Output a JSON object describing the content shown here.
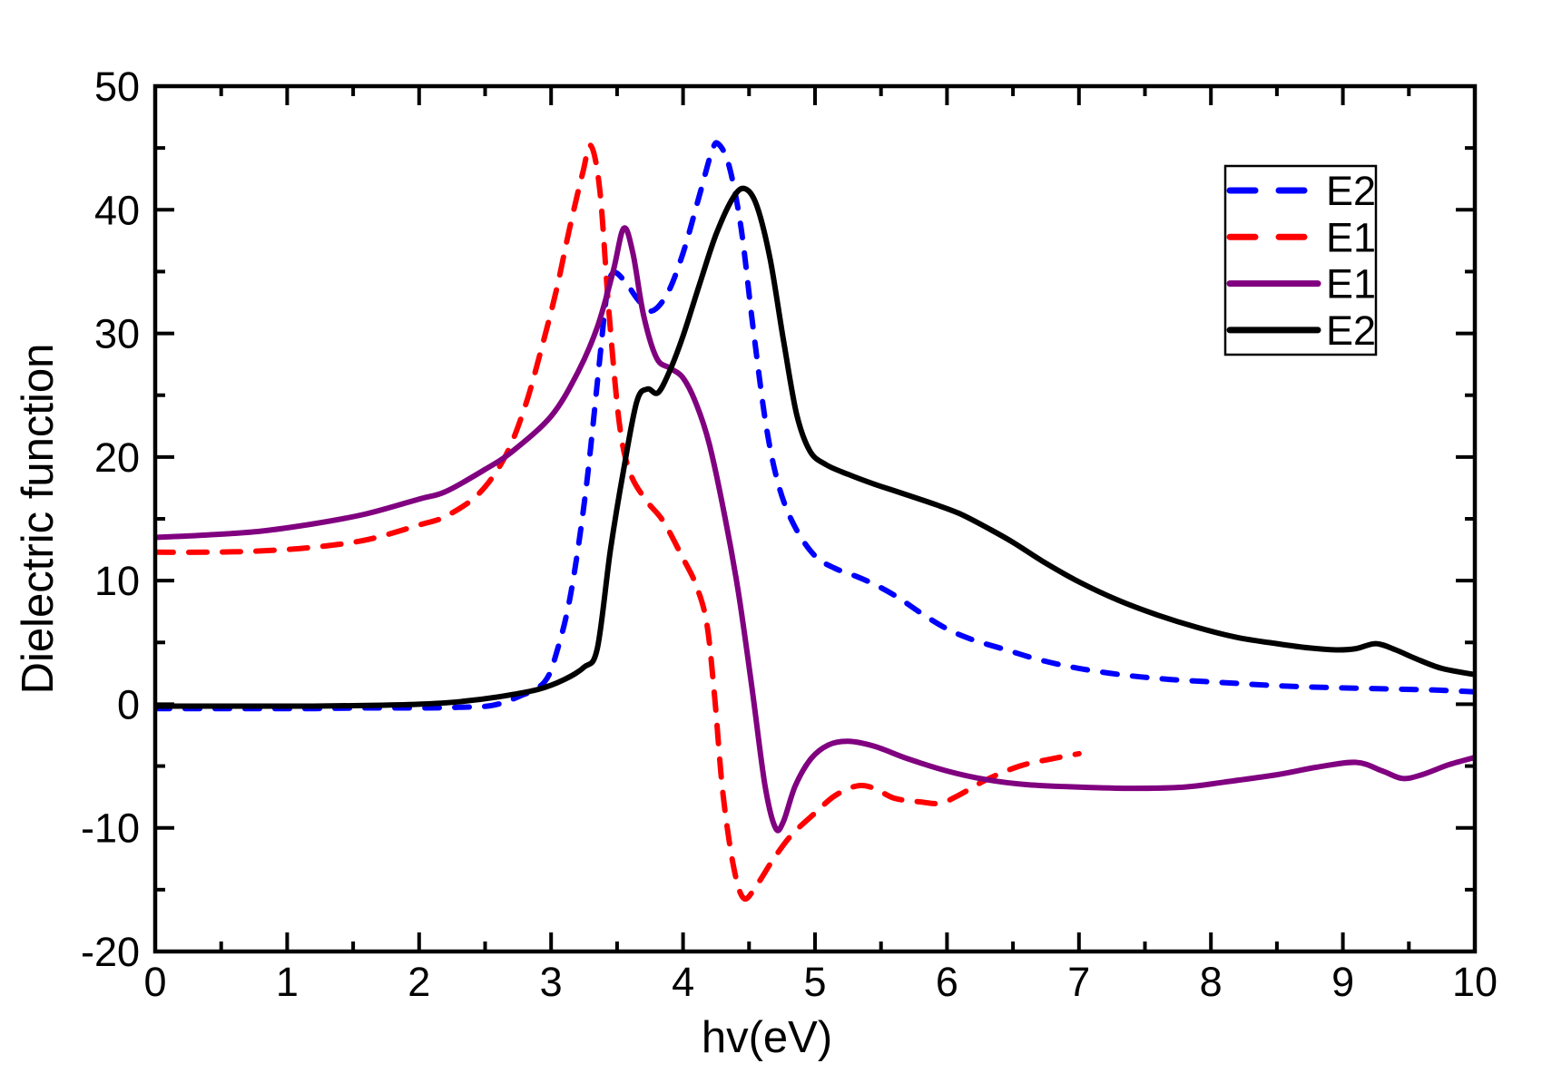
{
  "chart_data": {
    "type": "line",
    "title": "",
    "xlabel": "hv(eV)",
    "ylabel": "Dielectric function",
    "xlim": [
      0,
      10
    ],
    "ylim": [
      -20,
      50
    ],
    "x_major_ticks": [
      0,
      1,
      2,
      3,
      4,
      5,
      6,
      7,
      8,
      9,
      10
    ],
    "x_minor_step": 0.5,
    "y_major_ticks": [
      -20,
      -10,
      0,
      10,
      20,
      30,
      40,
      50
    ],
    "y_minor_step": 5,
    "grid": false,
    "background_color": "#ffffff",
    "axis_color": "#000000",
    "legend": {
      "position": "top-right",
      "entries": [
        {
          "label": "E2",
          "color": "#0000ff",
          "dashed": true
        },
        {
          "label": "E1",
          "color": "#ff0000",
          "dashed": true
        },
        {
          "label": "E1",
          "color": "#800080",
          "dashed": false
        },
        {
          "label": "E2",
          "color": "#000000",
          "dashed": false
        }
      ]
    },
    "series": [
      {
        "name": "E2",
        "color": "#0000ff",
        "dashed": true,
        "points": [
          [
            0,
            -0.35
          ],
          [
            0.4,
            -0.35
          ],
          [
            0.8,
            -0.35
          ],
          [
            1.2,
            -0.35
          ],
          [
            1.6,
            -0.3
          ],
          [
            2.0,
            -0.3
          ],
          [
            2.3,
            -0.25
          ],
          [
            2.55,
            -0.1
          ],
          [
            2.75,
            0.6
          ],
          [
            2.95,
            1.8
          ],
          [
            3.05,
            4.5
          ],
          [
            3.15,
            9
          ],
          [
            3.26,
            17
          ],
          [
            3.36,
            27
          ],
          [
            3.42,
            33
          ],
          [
            3.47,
            34.9
          ],
          [
            3.56,
            34.2
          ],
          [
            3.66,
            32.7
          ],
          [
            3.76,
            31.8
          ],
          [
            3.88,
            33.2
          ],
          [
            4.0,
            36.5
          ],
          [
            4.12,
            41
          ],
          [
            4.22,
            44.8
          ],
          [
            4.27,
            45.3
          ],
          [
            4.35,
            43.5
          ],
          [
            4.44,
            38.5
          ],
          [
            4.53,
            30.5
          ],
          [
            4.63,
            22.5
          ],
          [
            4.73,
            17.5
          ],
          [
            4.85,
            14.3
          ],
          [
            5.0,
            12.0
          ],
          [
            5.15,
            11.0
          ],
          [
            5.3,
            10.4
          ],
          [
            5.45,
            9.7
          ],
          [
            5.62,
            8.7
          ],
          [
            5.8,
            7.4
          ],
          [
            6.0,
            6.1
          ],
          [
            6.2,
            5.2
          ],
          [
            6.45,
            4.4
          ],
          [
            6.7,
            3.6
          ],
          [
            7.0,
            2.9
          ],
          [
            7.35,
            2.35
          ],
          [
            7.7,
            2.0
          ],
          [
            8.1,
            1.75
          ],
          [
            8.5,
            1.5
          ],
          [
            8.9,
            1.35
          ],
          [
            9.3,
            1.25
          ],
          [
            9.7,
            1.15
          ],
          [
            10,
            1.0
          ]
        ]
      },
      {
        "name": "E1",
        "color": "#ff0000",
        "dashed": true,
        "points": [
          [
            0,
            12.3
          ],
          [
            0.4,
            12.3
          ],
          [
            0.8,
            12.4
          ],
          [
            1.2,
            12.7
          ],
          [
            1.6,
            13.3
          ],
          [
            2.0,
            14.5
          ],
          [
            2.2,
            15.2
          ],
          [
            2.45,
            17
          ],
          [
            2.65,
            20
          ],
          [
            2.8,
            24
          ],
          [
            2.92,
            28.5
          ],
          [
            3.04,
            33.5
          ],
          [
            3.14,
            38.5
          ],
          [
            3.24,
            43
          ],
          [
            3.3,
            45.2
          ],
          [
            3.37,
            41.5
          ],
          [
            3.44,
            31.5
          ],
          [
            3.52,
            22.5
          ],
          [
            3.6,
            18.7
          ],
          [
            3.72,
            16.5
          ],
          [
            3.85,
            14.8
          ],
          [
            4.0,
            11.8
          ],
          [
            4.1,
            9.6
          ],
          [
            4.18,
            6.5
          ],
          [
            4.24,
            0.5
          ],
          [
            4.3,
            -7
          ],
          [
            4.38,
            -13
          ],
          [
            4.46,
            -15.7
          ],
          [
            4.56,
            -14.6
          ],
          [
            4.68,
            -12.6
          ],
          [
            4.82,
            -10.6
          ],
          [
            5.0,
            -8.8
          ],
          [
            5.15,
            -7.4
          ],
          [
            5.32,
            -6.6
          ],
          [
            5.45,
            -6.8
          ],
          [
            5.6,
            -7.6
          ],
          [
            5.8,
            -7.9
          ],
          [
            5.95,
            -8.0
          ],
          [
            6.1,
            -7.3
          ],
          [
            6.3,
            -6.1
          ],
          [
            6.55,
            -5.0
          ],
          [
            6.8,
            -4.4
          ],
          [
            7.0,
            -4.0
          ]
        ]
      },
      {
        "name": "E1",
        "color": "#800080",
        "dashed": false,
        "points": [
          [
            0,
            13.5
          ],
          [
            0.4,
            13.7
          ],
          [
            0.8,
            14.0
          ],
          [
            1.2,
            14.6
          ],
          [
            1.6,
            15.4
          ],
          [
            2.0,
            16.6
          ],
          [
            2.2,
            17.2
          ],
          [
            2.5,
            19
          ],
          [
            2.7,
            20.4
          ],
          [
            3.0,
            23.3
          ],
          [
            3.2,
            26.8
          ],
          [
            3.35,
            30.5
          ],
          [
            3.47,
            35
          ],
          [
            3.55,
            38.5
          ],
          [
            3.62,
            36.5
          ],
          [
            3.7,
            31.5
          ],
          [
            3.8,
            28.0
          ],
          [
            3.9,
            27.2
          ],
          [
            4.0,
            26.4
          ],
          [
            4.1,
            24.3
          ],
          [
            4.2,
            21.0
          ],
          [
            4.32,
            15.0
          ],
          [
            4.42,
            9.0
          ],
          [
            4.52,
            1.5
          ],
          [
            4.62,
            -6.5
          ],
          [
            4.7,
            -10.0
          ],
          [
            4.76,
            -9.5
          ],
          [
            4.85,
            -6.6
          ],
          [
            4.97,
            -4.4
          ],
          [
            5.1,
            -3.3
          ],
          [
            5.25,
            -3.0
          ],
          [
            5.45,
            -3.4
          ],
          [
            5.7,
            -4.4
          ],
          [
            6.0,
            -5.4
          ],
          [
            6.3,
            -6.1
          ],
          [
            6.6,
            -6.5
          ],
          [
            7.0,
            -6.7
          ],
          [
            7.4,
            -6.8
          ],
          [
            7.8,
            -6.7
          ],
          [
            8.1,
            -6.3
          ],
          [
            8.5,
            -5.7
          ],
          [
            8.8,
            -5.1
          ],
          [
            9.1,
            -4.7
          ],
          [
            9.3,
            -5.4
          ],
          [
            9.45,
            -6.0
          ],
          [
            9.6,
            -5.7
          ],
          [
            9.8,
            -4.9
          ],
          [
            10,
            -4.3
          ]
        ]
      },
      {
        "name": "E2",
        "color": "#000000",
        "dashed": false,
        "points": [
          [
            0,
            -0.15
          ],
          [
            0.4,
            -0.15
          ],
          [
            0.8,
            -0.15
          ],
          [
            1.2,
            -0.15
          ],
          [
            1.6,
            -0.1
          ],
          [
            2.0,
            0
          ],
          [
            2.3,
            0.2
          ],
          [
            2.6,
            0.6
          ],
          [
            2.9,
            1.2
          ],
          [
            3.1,
            2.0
          ],
          [
            3.25,
            3.0
          ],
          [
            3.35,
            4.5
          ],
          [
            3.45,
            12.5
          ],
          [
            3.55,
            19
          ],
          [
            3.65,
            24.5
          ],
          [
            3.73,
            25.5
          ],
          [
            3.81,
            25.2
          ],
          [
            3.9,
            27
          ],
          [
            4.0,
            29.8
          ],
          [
            4.12,
            33.8
          ],
          [
            4.25,
            38
          ],
          [
            4.38,
            41
          ],
          [
            4.47,
            41.7
          ],
          [
            4.56,
            40.3
          ],
          [
            4.66,
            36
          ],
          [
            4.76,
            29.5
          ],
          [
            4.86,
            23.5
          ],
          [
            4.96,
            20.5
          ],
          [
            5.08,
            19.4
          ],
          [
            5.25,
            18.6
          ],
          [
            5.45,
            17.8
          ],
          [
            5.65,
            17.1
          ],
          [
            5.9,
            16.2
          ],
          [
            6.1,
            15.4
          ],
          [
            6.3,
            14.3
          ],
          [
            6.5,
            13.1
          ],
          [
            6.75,
            11.4
          ],
          [
            7.0,
            9.9
          ],
          [
            7.3,
            8.4
          ],
          [
            7.6,
            7.2
          ],
          [
            7.9,
            6.2
          ],
          [
            8.2,
            5.4
          ],
          [
            8.5,
            4.9
          ],
          [
            8.75,
            4.55
          ],
          [
            8.95,
            4.4
          ],
          [
            9.1,
            4.5
          ],
          [
            9.25,
            4.9
          ],
          [
            9.4,
            4.4
          ],
          [
            9.55,
            3.7
          ],
          [
            9.75,
            2.9
          ],
          [
            10,
            2.4
          ]
        ]
      }
    ]
  }
}
